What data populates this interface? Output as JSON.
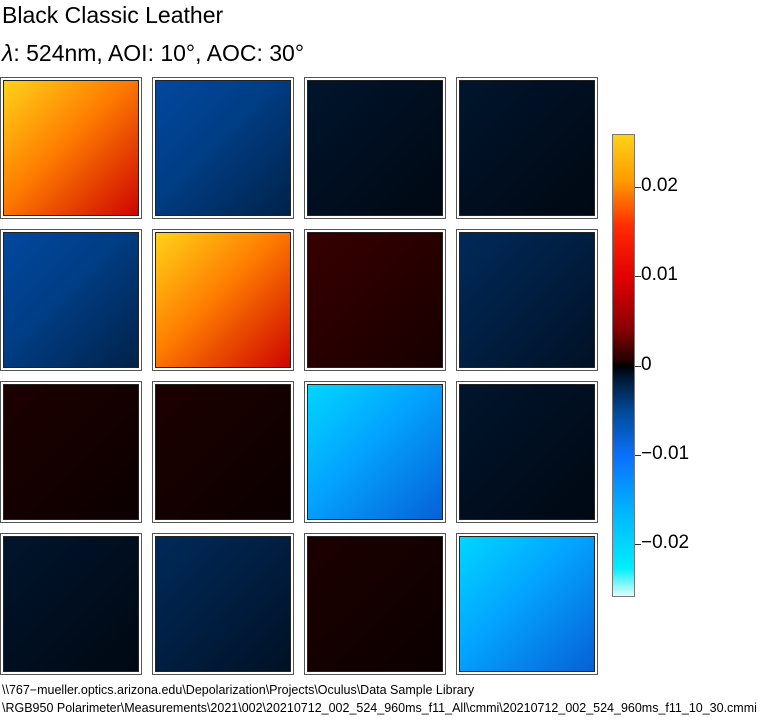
{
  "chart_data": {
    "type": "heatmap",
    "title": "Black Classic Leather",
    "subtitle_symbol": "λ",
    "subtitle_rest": ": 524nm, AOI: 10°, AOC: 30°",
    "layout": {
      "rows": 4,
      "cols": 4
    },
    "elements_approx": [
      [
        0.02,
        -0.004,
        -0.001,
        -0.001
      ],
      [
        -0.004,
        0.02,
        0.002,
        -0.002
      ],
      [
        0.001,
        0.001,
        -0.015,
        -0.001
      ],
      [
        -0.001,
        -0.002,
        0.001,
        -0.015
      ]
    ],
    "colorbar": {
      "range": [
        -0.026,
        0.026
      ],
      "ticks": [
        {
          "value": 0.02,
          "label": "0.02"
        },
        {
          "value": 0.01,
          "label": "0.01"
        },
        {
          "value": 0,
          "label": "0"
        },
        {
          "value": -0.01,
          "label": "−0.01"
        },
        {
          "value": -0.02,
          "label": "−0.02"
        }
      ]
    },
    "footer_path": [
      "\\\\767−mueller.optics.arizona.edu\\Depolarization\\Projects\\Oculus\\Data Sample Library",
      "\\RGB950 Polarimeter\\Measurements\\2021\\002\\20210712_002_524_960ms_f11_All\\cmmi\\20210712_002_524_960ms_f11_10_30.cmmi"
    ],
    "colors": {
      "max": "#ffd21a",
      "high": "#ff2a00",
      "zero": "#000000",
      "low": "#0a72ff",
      "min": "#00eeff"
    }
  }
}
